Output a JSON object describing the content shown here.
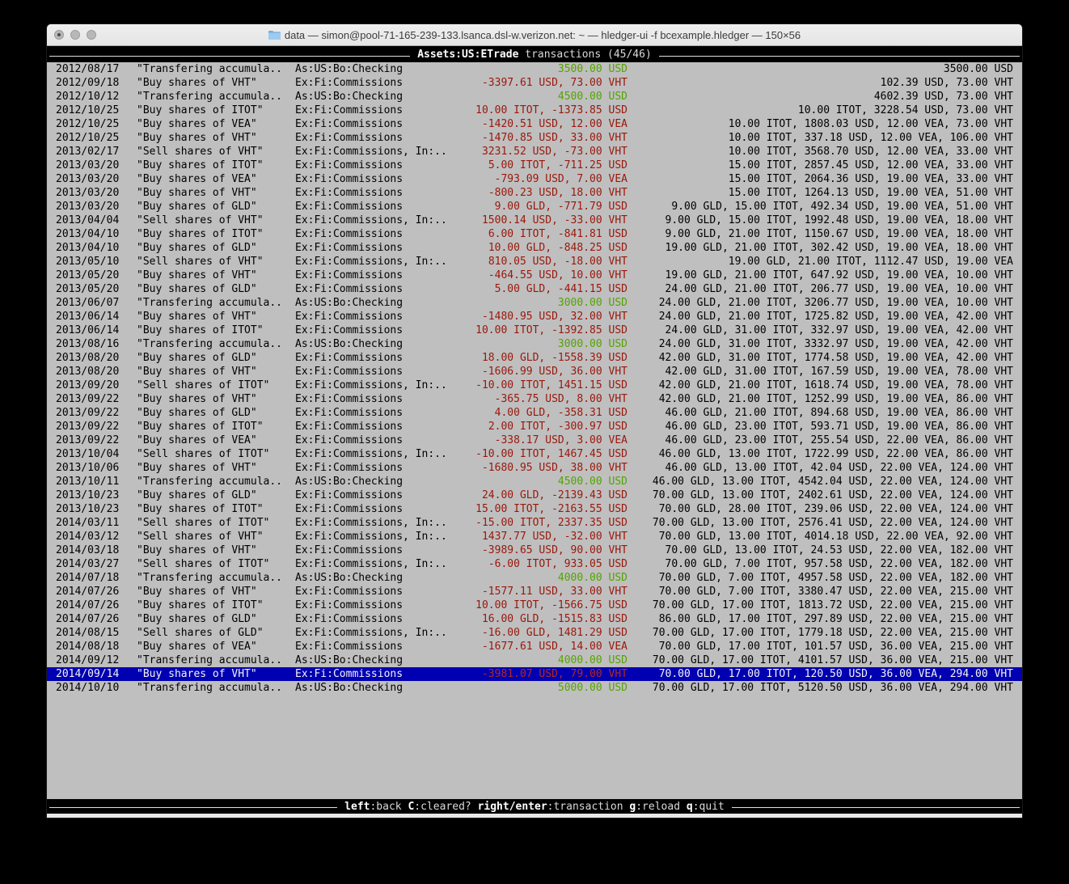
{
  "window": {
    "title": "data — simon@pool-71-165-239-133.lsanca.dsl-w.verizon.net: ~ — hledger-ui -f bcexample.hledger — 150×56",
    "traffic_lights": [
      "close",
      "minimize",
      "zoom"
    ]
  },
  "colors": {
    "terminal_bg": "#bfbfbf",
    "bar_bg": "#000000",
    "positive_amount": "#55a300",
    "negative_amount": "#9a170b",
    "selection_bg": "#0000b2"
  },
  "top_bar": {
    "account": "Assets:US:ETrade",
    "mode": " transactions (45/46)"
  },
  "bottom_bar": {
    "hints": [
      {
        "key": "left",
        "action": ":back"
      },
      {
        "key": "C",
        "action": ":cleared?"
      },
      {
        "key": "right/enter",
        "action": ":transaction"
      },
      {
        "key": "g",
        "action": ":reload"
      },
      {
        "key": "q",
        "action": ":quit"
      }
    ]
  },
  "transactions": [
    {
      "date": "2012/08/17",
      "desc": "\"Transfering accumula..",
      "acct": "As:US:Bo:Checking",
      "amt": "3500.00 USD",
      "amt_color": "green",
      "bal": "3500.00 USD",
      "selected": false
    },
    {
      "date": "2012/09/18",
      "desc": "\"Buy shares of VHT\"",
      "acct": "Ex:Fi:Commissions",
      "amt": "-3397.61 USD, 73.00 VHT",
      "amt_color": "red",
      "bal": "102.39 USD, 73.00 VHT",
      "selected": false
    },
    {
      "date": "2012/10/12",
      "desc": "\"Transfering accumula..",
      "acct": "As:US:Bo:Checking",
      "amt": "4500.00 USD",
      "amt_color": "green",
      "bal": "4602.39 USD, 73.00 VHT",
      "selected": false
    },
    {
      "date": "2012/10/25",
      "desc": "\"Buy shares of ITOT\"",
      "acct": "Ex:Fi:Commissions",
      "amt": "10.00 ITOT, -1373.85 USD",
      "amt_color": "red",
      "bal": "10.00 ITOT, 3228.54 USD, 73.00 VHT",
      "selected": false
    },
    {
      "date": "2012/10/25",
      "desc": "\"Buy shares of VEA\"",
      "acct": "Ex:Fi:Commissions",
      "amt": "-1420.51 USD, 12.00 VEA",
      "amt_color": "red",
      "bal": "10.00 ITOT, 1808.03 USD, 12.00 VEA, 73.00 VHT",
      "selected": false
    },
    {
      "date": "2012/10/25",
      "desc": "\"Buy shares of VHT\"",
      "acct": "Ex:Fi:Commissions",
      "amt": "-1470.85 USD, 33.00 VHT",
      "amt_color": "red",
      "bal": "10.00 ITOT, 337.18 USD, 12.00 VEA, 106.00 VHT",
      "selected": false
    },
    {
      "date": "2013/02/17",
      "desc": "\"Sell shares of VHT\"",
      "acct": "Ex:Fi:Commissions, In:..",
      "amt": "3231.52 USD, -73.00 VHT",
      "amt_color": "red",
      "bal": "10.00 ITOT, 3568.70 USD, 12.00 VEA, 33.00 VHT",
      "selected": false
    },
    {
      "date": "2013/03/20",
      "desc": "\"Buy shares of ITOT\"",
      "acct": "Ex:Fi:Commissions",
      "amt": "5.00 ITOT, -711.25 USD",
      "amt_color": "red",
      "bal": "15.00 ITOT, 2857.45 USD, 12.00 VEA, 33.00 VHT",
      "selected": false
    },
    {
      "date": "2013/03/20",
      "desc": "\"Buy shares of VEA\"",
      "acct": "Ex:Fi:Commissions",
      "amt": "-793.09 USD, 7.00 VEA",
      "amt_color": "red",
      "bal": "15.00 ITOT, 2064.36 USD, 19.00 VEA, 33.00 VHT",
      "selected": false
    },
    {
      "date": "2013/03/20",
      "desc": "\"Buy shares of VHT\"",
      "acct": "Ex:Fi:Commissions",
      "amt": "-800.23 USD, 18.00 VHT",
      "amt_color": "red",
      "bal": "15.00 ITOT, 1264.13 USD, 19.00 VEA, 51.00 VHT",
      "selected": false
    },
    {
      "date": "2013/03/20",
      "desc": "\"Buy shares of GLD\"",
      "acct": "Ex:Fi:Commissions",
      "amt": "9.00 GLD, -771.79 USD",
      "amt_color": "red",
      "bal": "9.00 GLD, 15.00 ITOT, 492.34 USD, 19.00 VEA, 51.00 VHT",
      "selected": false
    },
    {
      "date": "2013/04/04",
      "desc": "\"Sell shares of VHT\"",
      "acct": "Ex:Fi:Commissions, In:..",
      "amt": "1500.14 USD, -33.00 VHT",
      "amt_color": "red",
      "bal": "9.00 GLD, 15.00 ITOT, 1992.48 USD, 19.00 VEA, 18.00 VHT",
      "selected": false
    },
    {
      "date": "2013/04/10",
      "desc": "\"Buy shares of ITOT\"",
      "acct": "Ex:Fi:Commissions",
      "amt": "6.00 ITOT, -841.81 USD",
      "amt_color": "red",
      "bal": "9.00 GLD, 21.00 ITOT, 1150.67 USD, 19.00 VEA, 18.00 VHT",
      "selected": false
    },
    {
      "date": "2013/04/10",
      "desc": "\"Buy shares of GLD\"",
      "acct": "Ex:Fi:Commissions",
      "amt": "10.00 GLD, -848.25 USD",
      "amt_color": "red",
      "bal": "19.00 GLD, 21.00 ITOT, 302.42 USD, 19.00 VEA, 18.00 VHT",
      "selected": false
    },
    {
      "date": "2013/05/10",
      "desc": "\"Sell shares of VHT\"",
      "acct": "Ex:Fi:Commissions, In:..",
      "amt": "810.05 USD, -18.00 VHT",
      "amt_color": "red",
      "bal": "19.00 GLD, 21.00 ITOT, 1112.47 USD, 19.00 VEA",
      "selected": false
    },
    {
      "date": "2013/05/20",
      "desc": "\"Buy shares of VHT\"",
      "acct": "Ex:Fi:Commissions",
      "amt": "-464.55 USD, 10.00 VHT",
      "amt_color": "red",
      "bal": "19.00 GLD, 21.00 ITOT, 647.92 USD, 19.00 VEA, 10.00 VHT",
      "selected": false
    },
    {
      "date": "2013/05/20",
      "desc": "\"Buy shares of GLD\"",
      "acct": "Ex:Fi:Commissions",
      "amt": "5.00 GLD, -441.15 USD",
      "amt_color": "red",
      "bal": "24.00 GLD, 21.00 ITOT, 206.77 USD, 19.00 VEA, 10.00 VHT",
      "selected": false
    },
    {
      "date": "2013/06/07",
      "desc": "\"Transfering accumula..",
      "acct": "As:US:Bo:Checking",
      "amt": "3000.00 USD",
      "amt_color": "green",
      "bal": "24.00 GLD, 21.00 ITOT, 3206.77 USD, 19.00 VEA, 10.00 VHT",
      "selected": false
    },
    {
      "date": "2013/06/14",
      "desc": "\"Buy shares of VHT\"",
      "acct": "Ex:Fi:Commissions",
      "amt": "-1480.95 USD, 32.00 VHT",
      "amt_color": "red",
      "bal": "24.00 GLD, 21.00 ITOT, 1725.82 USD, 19.00 VEA, 42.00 VHT",
      "selected": false
    },
    {
      "date": "2013/06/14",
      "desc": "\"Buy shares of ITOT\"",
      "acct": "Ex:Fi:Commissions",
      "amt": "10.00 ITOT, -1392.85 USD",
      "amt_color": "red",
      "bal": "24.00 GLD, 31.00 ITOT, 332.97 USD, 19.00 VEA, 42.00 VHT",
      "selected": false
    },
    {
      "date": "2013/08/16",
      "desc": "\"Transfering accumula..",
      "acct": "As:US:Bo:Checking",
      "amt": "3000.00 USD",
      "amt_color": "green",
      "bal": "24.00 GLD, 31.00 ITOT, 3332.97 USD, 19.00 VEA, 42.00 VHT",
      "selected": false
    },
    {
      "date": "2013/08/20",
      "desc": "\"Buy shares of GLD\"",
      "acct": "Ex:Fi:Commissions",
      "amt": "18.00 GLD, -1558.39 USD",
      "amt_color": "red",
      "bal": "42.00 GLD, 31.00 ITOT, 1774.58 USD, 19.00 VEA, 42.00 VHT",
      "selected": false
    },
    {
      "date": "2013/08/20",
      "desc": "\"Buy shares of VHT\"",
      "acct": "Ex:Fi:Commissions",
      "amt": "-1606.99 USD, 36.00 VHT",
      "amt_color": "red",
      "bal": "42.00 GLD, 31.00 ITOT, 167.59 USD, 19.00 VEA, 78.00 VHT",
      "selected": false
    },
    {
      "date": "2013/09/20",
      "desc": "\"Sell shares of ITOT\"",
      "acct": "Ex:Fi:Commissions, In:..",
      "amt": "-10.00 ITOT, 1451.15 USD",
      "amt_color": "red",
      "bal": "42.00 GLD, 21.00 ITOT, 1618.74 USD, 19.00 VEA, 78.00 VHT",
      "selected": false
    },
    {
      "date": "2013/09/22",
      "desc": "\"Buy shares of VHT\"",
      "acct": "Ex:Fi:Commissions",
      "amt": "-365.75 USD, 8.00 VHT",
      "amt_color": "red",
      "bal": "42.00 GLD, 21.00 ITOT, 1252.99 USD, 19.00 VEA, 86.00 VHT",
      "selected": false
    },
    {
      "date": "2013/09/22",
      "desc": "\"Buy shares of GLD\"",
      "acct": "Ex:Fi:Commissions",
      "amt": "4.00 GLD, -358.31 USD",
      "amt_color": "red",
      "bal": "46.00 GLD, 21.00 ITOT, 894.68 USD, 19.00 VEA, 86.00 VHT",
      "selected": false
    },
    {
      "date": "2013/09/22",
      "desc": "\"Buy shares of ITOT\"",
      "acct": "Ex:Fi:Commissions",
      "amt": "2.00 ITOT, -300.97 USD",
      "amt_color": "red",
      "bal": "46.00 GLD, 23.00 ITOT, 593.71 USD, 19.00 VEA, 86.00 VHT",
      "selected": false
    },
    {
      "date": "2013/09/22",
      "desc": "\"Buy shares of VEA\"",
      "acct": "Ex:Fi:Commissions",
      "amt": "-338.17 USD, 3.00 VEA",
      "amt_color": "red",
      "bal": "46.00 GLD, 23.00 ITOT, 255.54 USD, 22.00 VEA, 86.00 VHT",
      "selected": false
    },
    {
      "date": "2013/10/04",
      "desc": "\"Sell shares of ITOT\"",
      "acct": "Ex:Fi:Commissions, In:..",
      "amt": "-10.00 ITOT, 1467.45 USD",
      "amt_color": "red",
      "bal": "46.00 GLD, 13.00 ITOT, 1722.99 USD, 22.00 VEA, 86.00 VHT",
      "selected": false
    },
    {
      "date": "2013/10/06",
      "desc": "\"Buy shares of VHT\"",
      "acct": "Ex:Fi:Commissions",
      "amt": "-1680.95 USD, 38.00 VHT",
      "amt_color": "red",
      "bal": "46.00 GLD, 13.00 ITOT, 42.04 USD, 22.00 VEA, 124.00 VHT",
      "selected": false
    },
    {
      "date": "2013/10/11",
      "desc": "\"Transfering accumula..",
      "acct": "As:US:Bo:Checking",
      "amt": "4500.00 USD",
      "amt_color": "green",
      "bal": "46.00 GLD, 13.00 ITOT, 4542.04 USD, 22.00 VEA, 124.00 VHT",
      "selected": false
    },
    {
      "date": "2013/10/23",
      "desc": "\"Buy shares of GLD\"",
      "acct": "Ex:Fi:Commissions",
      "amt": "24.00 GLD, -2139.43 USD",
      "amt_color": "red",
      "bal": "70.00 GLD, 13.00 ITOT, 2402.61 USD, 22.00 VEA, 124.00 VHT",
      "selected": false
    },
    {
      "date": "2013/10/23",
      "desc": "\"Buy shares of ITOT\"",
      "acct": "Ex:Fi:Commissions",
      "amt": "15.00 ITOT, -2163.55 USD",
      "amt_color": "red",
      "bal": "70.00 GLD, 28.00 ITOT, 239.06 USD, 22.00 VEA, 124.00 VHT",
      "selected": false
    },
    {
      "date": "2014/03/11",
      "desc": "\"Sell shares of ITOT\"",
      "acct": "Ex:Fi:Commissions, In:..",
      "amt": "-15.00 ITOT, 2337.35 USD",
      "amt_color": "red",
      "bal": "70.00 GLD, 13.00 ITOT, 2576.41 USD, 22.00 VEA, 124.00 VHT",
      "selected": false
    },
    {
      "date": "2014/03/12",
      "desc": "\"Sell shares of VHT\"",
      "acct": "Ex:Fi:Commissions, In:..",
      "amt": "1437.77 USD, -32.00 VHT",
      "amt_color": "red",
      "bal": "70.00 GLD, 13.00 ITOT, 4014.18 USD, 22.00 VEA, 92.00 VHT",
      "selected": false
    },
    {
      "date": "2014/03/18",
      "desc": "\"Buy shares of VHT\"",
      "acct": "Ex:Fi:Commissions",
      "amt": "-3989.65 USD, 90.00 VHT",
      "amt_color": "red",
      "bal": "70.00 GLD, 13.00 ITOT, 24.53 USD, 22.00 VEA, 182.00 VHT",
      "selected": false
    },
    {
      "date": "2014/03/27",
      "desc": "\"Sell shares of ITOT\"",
      "acct": "Ex:Fi:Commissions, In:..",
      "amt": "-6.00 ITOT, 933.05 USD",
      "amt_color": "red",
      "bal": "70.00 GLD, 7.00 ITOT, 957.58 USD, 22.00 VEA, 182.00 VHT",
      "selected": false
    },
    {
      "date": "2014/07/18",
      "desc": "\"Transfering accumula..",
      "acct": "As:US:Bo:Checking",
      "amt": "4000.00 USD",
      "amt_color": "green",
      "bal": "70.00 GLD, 7.00 ITOT, 4957.58 USD, 22.00 VEA, 182.00 VHT",
      "selected": false
    },
    {
      "date": "2014/07/26",
      "desc": "\"Buy shares of VHT\"",
      "acct": "Ex:Fi:Commissions",
      "amt": "-1577.11 USD, 33.00 VHT",
      "amt_color": "red",
      "bal": "70.00 GLD, 7.00 ITOT, 3380.47 USD, 22.00 VEA, 215.00 VHT",
      "selected": false
    },
    {
      "date": "2014/07/26",
      "desc": "\"Buy shares of ITOT\"",
      "acct": "Ex:Fi:Commissions",
      "amt": "10.00 ITOT, -1566.75 USD",
      "amt_color": "red",
      "bal": "70.00 GLD, 17.00 ITOT, 1813.72 USD, 22.00 VEA, 215.00 VHT",
      "selected": false
    },
    {
      "date": "2014/07/26",
      "desc": "\"Buy shares of GLD\"",
      "acct": "Ex:Fi:Commissions",
      "amt": "16.00 GLD, -1515.83 USD",
      "amt_color": "red",
      "bal": "86.00 GLD, 17.00 ITOT, 297.89 USD, 22.00 VEA, 215.00 VHT",
      "selected": false
    },
    {
      "date": "2014/08/15",
      "desc": "\"Sell shares of GLD\"",
      "acct": "Ex:Fi:Commissions, In:..",
      "amt": "-16.00 GLD, 1481.29 USD",
      "amt_color": "red",
      "bal": "70.00 GLD, 17.00 ITOT, 1779.18 USD, 22.00 VEA, 215.00 VHT",
      "selected": false
    },
    {
      "date": "2014/08/18",
      "desc": "\"Buy shares of VEA\"",
      "acct": "Ex:Fi:Commissions",
      "amt": "-1677.61 USD, 14.00 VEA",
      "amt_color": "red",
      "bal": "70.00 GLD, 17.00 ITOT, 101.57 USD, 36.00 VEA, 215.00 VHT",
      "selected": false
    },
    {
      "date": "2014/09/12",
      "desc": "\"Transfering accumula..",
      "acct": "As:US:Bo:Checking",
      "amt": "4000.00 USD",
      "amt_color": "green",
      "bal": "70.00 GLD, 17.00 ITOT, 4101.57 USD, 36.00 VEA, 215.00 VHT",
      "selected": false
    },
    {
      "date": "2014/09/14",
      "desc": "\"Buy shares of VHT\"",
      "acct": "Ex:Fi:Commissions",
      "amt": "-3981.07 USD, 79.00 VHT",
      "amt_color": "red",
      "bal": "70.00 GLD, 17.00 ITOT, 120.50 USD, 36.00 VEA, 294.00 VHT",
      "selected": true
    },
    {
      "date": "2014/10/10",
      "desc": "\"Transfering accumula..",
      "acct": "As:US:Bo:Checking",
      "amt": "5000.00 USD",
      "amt_color": "green",
      "bal": "70.00 GLD, 17.00 ITOT, 5120.50 USD, 36.00 VEA, 294.00 VHT",
      "selected": false
    }
  ]
}
